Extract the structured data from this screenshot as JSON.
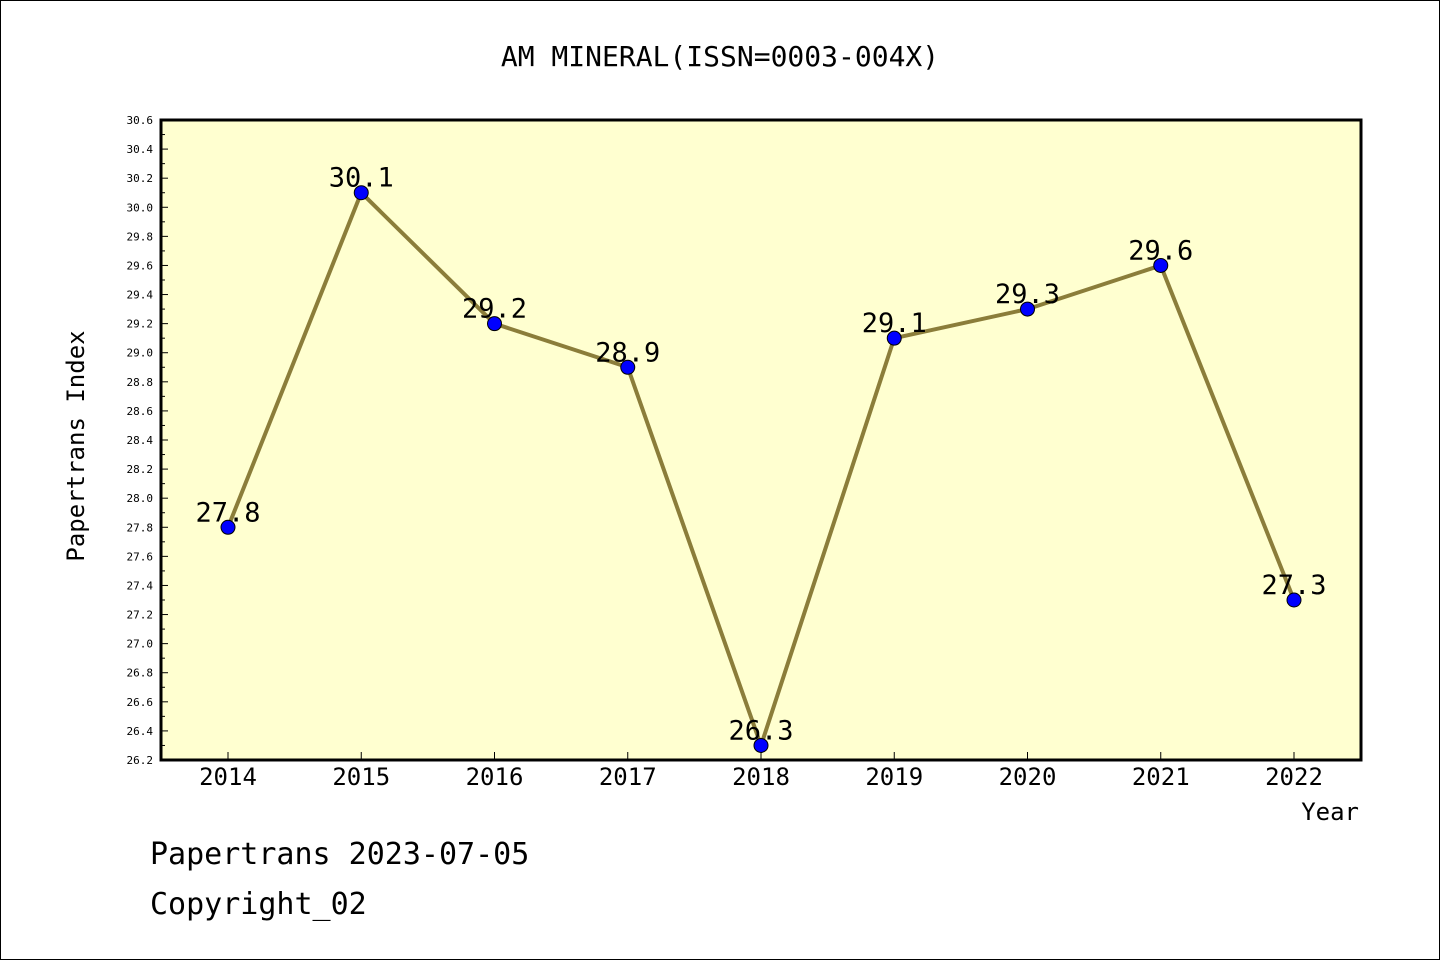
{
  "chart_data": {
    "type": "line",
    "title": "AM MINERAL(ISSN=0003-004X)",
    "xlabel": "Year",
    "ylabel": "Papertrans Index",
    "categories": [
      "2014",
      "2015",
      "2016",
      "2017",
      "2018",
      "2019",
      "2020",
      "2021",
      "2022"
    ],
    "series": [
      {
        "values": [
          27.8,
          30.1,
          29.2,
          28.9,
          26.3,
          29.1,
          29.3,
          29.6,
          27.3
        ],
        "labels": [
          "27.8",
          "30.1",
          "29.2",
          "28.9",
          "26.3",
          "29.1",
          "29.3",
          "29.6",
          "27.3"
        ]
      }
    ],
    "ylim": [
      26.2,
      30.6
    ],
    "ytick_step": 0.2,
    "grid": false,
    "colors": {
      "plot_background": "#FFFFD0",
      "line": "#8B7D3A",
      "marker": "#0000FF"
    }
  },
  "footer": {
    "line1": "Papertrans 2023-07-05",
    "line2": "Copyright_02"
  }
}
